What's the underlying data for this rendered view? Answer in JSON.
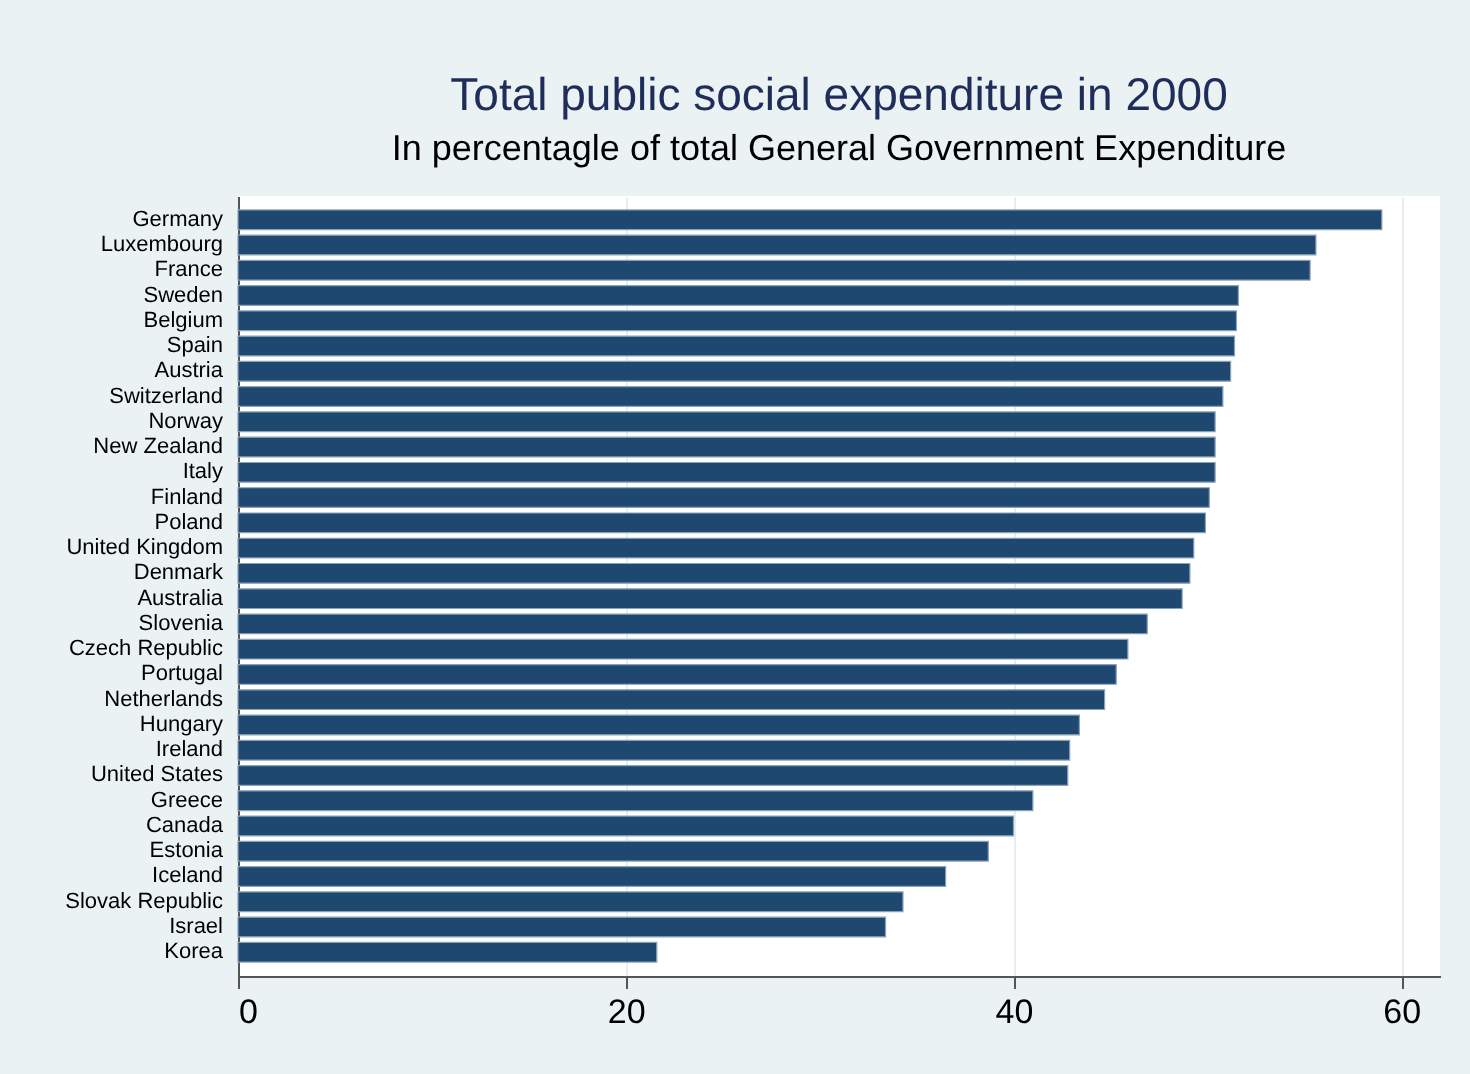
{
  "chart_data": {
    "type": "bar",
    "orientation": "horizontal",
    "title": "Total public social expenditure in 2000",
    "subtitle": "In percentagle of total General Government Expenditure",
    "categories": [
      "Germany",
      "Luxembourg",
      "France",
      "Sweden",
      "Belgium",
      "Spain",
      "Austria",
      "Switzerland",
      "Norway",
      "New Zealand",
      "Italy",
      "Finland",
      "Poland",
      "United Kingdom",
      "Denmark",
      "Australia",
      "Slovenia",
      "Czech Republic",
      "Portugal",
      "Netherlands",
      "Hungary",
      "Ireland",
      "United States",
      "Greece",
      "Canada",
      "Estonia",
      "Iceland",
      "Slovak Republic",
      "Israel",
      "Korea"
    ],
    "values": [
      59.0,
      55.6,
      55.3,
      51.6,
      51.5,
      51.4,
      51.2,
      50.8,
      50.4,
      50.4,
      50.4,
      50.1,
      49.9,
      49.3,
      49.1,
      48.7,
      46.9,
      45.9,
      45.3,
      44.7,
      43.4,
      42.9,
      42.8,
      41.0,
      40.0,
      38.7,
      36.5,
      34.3,
      33.4,
      21.6
    ],
    "color": "#1e4870",
    "xlim": [
      0,
      62
    ],
    "xticks": [
      0,
      20,
      40,
      60
    ],
    "grid": "x"
  }
}
